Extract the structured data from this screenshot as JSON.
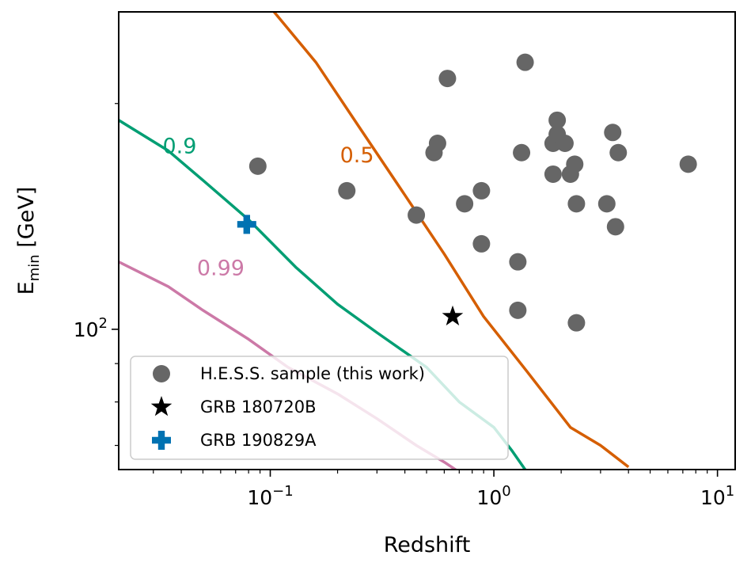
{
  "chart_data": {
    "type": "scatter",
    "xlabel": "Redshift",
    "ylabel": {
      "main": "E",
      "sub": "min",
      "unit": "[GeV]"
    },
    "xscale": "log",
    "yscale": "log",
    "xlim": [
      0.021,
      12
    ],
    "ylim": [
      65,
      265
    ],
    "x_tick_labels": [
      {
        "value": 0.1,
        "base": "10",
        "exp": "−1"
      },
      {
        "value": 1,
        "base": "10",
        "exp": "0"
      },
      {
        "value": 10,
        "base": "10",
        "exp": "1"
      }
    ],
    "y_tick_labels": [
      {
        "value": 100,
        "base": "10",
        "exp": "2"
      }
    ],
    "grid": false,
    "legend_position": "lower-left",
    "series": [
      {
        "name": "H.E.S.S. sample (this work)",
        "marker": "circle",
        "color": "#666666",
        "points": [
          [
            0.088,
            165
          ],
          [
            0.22,
            153
          ],
          [
            0.45,
            142
          ],
          [
            0.54,
            172
          ],
          [
            0.56,
            177
          ],
          [
            0.62,
            216
          ],
          [
            0.74,
            147
          ],
          [
            0.88,
            153
          ],
          [
            0.88,
            130
          ],
          [
            1.28,
            123
          ],
          [
            1.28,
            106
          ],
          [
            1.33,
            172
          ],
          [
            1.38,
            227
          ],
          [
            1.84,
            161
          ],
          [
            1.84,
            177
          ],
          [
            1.92,
            182
          ],
          [
            1.92,
            190
          ],
          [
            2.08,
            177
          ],
          [
            2.2,
            161
          ],
          [
            2.3,
            166
          ],
          [
            2.34,
            147
          ],
          [
            2.34,
            102
          ],
          [
            3.2,
            147
          ],
          [
            3.4,
            183
          ],
          [
            3.5,
            137
          ],
          [
            3.6,
            172
          ],
          [
            7.4,
            166
          ]
        ]
      },
      {
        "name": "GRB 180720B",
        "marker": "star",
        "color": "#000000",
        "points": [
          [
            0.654,
            104
          ]
        ]
      },
      {
        "name": "GRB 190829A",
        "marker": "plus",
        "color": "#0072b2",
        "points": [
          [
            0.0785,
            138
          ]
        ]
      }
    ],
    "curves": [
      {
        "label": "0.5",
        "color": "#d55e00",
        "points": [
          [
            0.104,
            265
          ],
          [
            0.16,
            227
          ],
          [
            0.25,
            186
          ],
          [
            0.4,
            151
          ],
          [
            0.6,
            126
          ],
          [
            0.9,
            104
          ],
          [
            1.4,
            88
          ],
          [
            2.2,
            74
          ],
          [
            3.0,
            70
          ],
          [
            4.0,
            65.5
          ]
        ]
      },
      {
        "label": "0.9",
        "color": "#009e73",
        "points": [
          [
            0.021,
            190
          ],
          [
            0.035,
            173
          ],
          [
            0.05,
            158
          ],
          [
            0.08,
            140
          ],
          [
            0.13,
            121
          ],
          [
            0.2,
            108
          ],
          [
            0.3,
            99
          ],
          [
            0.5,
            89
          ],
          [
            0.7,
            80
          ],
          [
            1.0,
            74
          ],
          [
            1.2,
            69
          ],
          [
            1.38,
            65
          ]
        ]
      },
      {
        "label": "0.99",
        "color": "#cc79a7",
        "points": [
          [
            0.021,
            123
          ],
          [
            0.035,
            114
          ],
          [
            0.05,
            106
          ],
          [
            0.08,
            97
          ],
          [
            0.12,
            89
          ],
          [
            0.2,
            82
          ],
          [
            0.3,
            76
          ],
          [
            0.45,
            70
          ],
          [
            0.6,
            66.5
          ],
          [
            0.7,
            64.5
          ]
        ]
      }
    ],
    "curve_label_positions": {
      "0.5": [
        0.205,
        171
      ],
      "0.9": [
        0.033,
        176
      ],
      "0.99": [
        0.047,
        121
      ]
    }
  }
}
